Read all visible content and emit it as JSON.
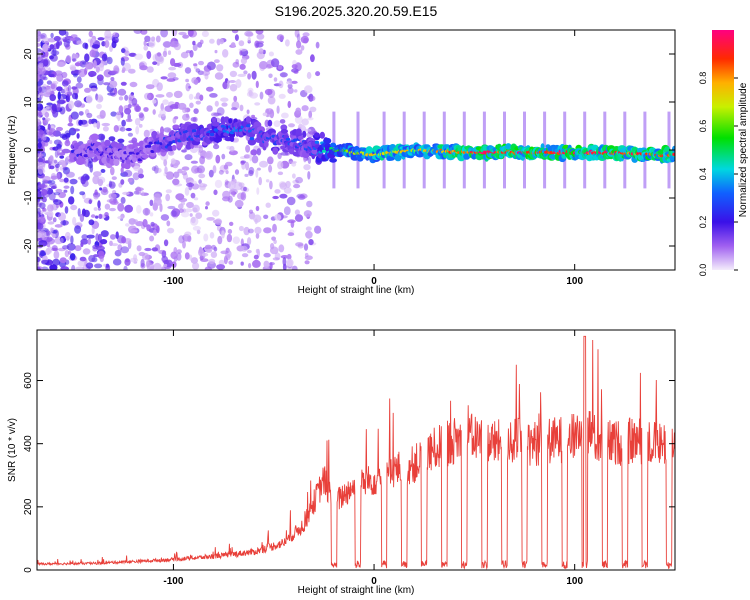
{
  "title": "S196.2025.320.20.59.E15",
  "chart_data": [
    {
      "type": "heatmap",
      "xlabel": "Height of straight line (km)",
      "ylabel": "Frequency (Hz)",
      "xlim": [
        -168,
        150
      ],
      "ylim": [
        -25,
        25
      ],
      "xticks": [
        -100,
        0,
        100
      ],
      "yticks": [
        -20,
        -10,
        0,
        10,
        20
      ],
      "colorbar": {
        "label": "Normalized spectral amplitude",
        "range": [
          0.0,
          1.0
        ],
        "ticks": [
          0.0,
          0.2,
          0.4,
          0.6,
          0.8
        ],
        "tick_labels": [
          "0.0",
          "0.2",
          "0.4",
          "0.6",
          "0.8"
        ]
      },
      "ridge": {
        "description_points_x": [
          -140,
          -120,
          -100,
          -85,
          -72,
          -60,
          -50,
          -40,
          -30,
          -20,
          -10,
          0,
          20,
          50,
          80,
          110,
          140
        ],
        "frequency_hz": [
          0.0,
          -1.5,
          2.5,
          3.5,
          5.0,
          3.5,
          2.5,
          1.5,
          0.5,
          0.0,
          -0.5,
          -1.0,
          0.0,
          -0.5,
          -0.5,
          -0.5,
          -1.0
        ],
        "amplitude": [
          0.22,
          0.18,
          0.28,
          0.3,
          0.35,
          0.32,
          0.3,
          0.28,
          0.32,
          0.55,
          0.7,
          0.8,
          0.75,
          0.95,
          0.95,
          0.95,
          0.9
        ]
      }
    },
    {
      "type": "line",
      "xlabel": "Height of straight line (km)",
      "ylabel": "SNR (10 * v/v)",
      "xlim": [
        -168,
        150
      ],
      "ylim": [
        0,
        760
      ],
      "xticks": [
        -100,
        0,
        100
      ],
      "yticks": [
        0,
        200,
        400,
        600
      ],
      "color": "#e8403a",
      "series": [
        {
          "name": "SNR",
          "x": [
            -168,
            -140,
            -120,
            -100,
            -80,
            -60,
            -45,
            -35,
            -25,
            -20,
            -10,
            0,
            10,
            20,
            30,
            40,
            50,
            60,
            70,
            80,
            90,
            100,
            105,
            110,
            120,
            130,
            140,
            150
          ],
          "values": [
            20,
            22,
            28,
            35,
            45,
            60,
            90,
            150,
            300,
            220,
            280,
            300,
            330,
            350,
            400,
            430,
            440,
            420,
            430,
            420,
            430,
            440,
            740,
            430,
            420,
            430,
            420,
            420
          ]
        }
      ],
      "dropouts_x": [
        -20,
        -8,
        5,
        15,
        25,
        35,
        45,
        55,
        65,
        75,
        85,
        95,
        105,
        115,
        125,
        135,
        147
      ]
    }
  ]
}
